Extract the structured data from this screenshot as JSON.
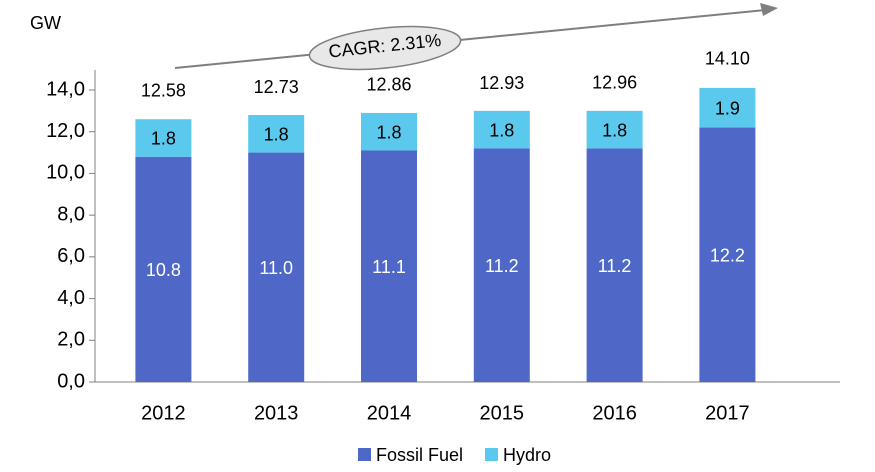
{
  "chart_data": {
    "type": "stacked_bar",
    "y_label": "GW",
    "annotation": "CAGR: 2.31%",
    "categories": [
      "2012",
      "2013",
      "2014",
      "2015",
      "2016",
      "2017"
    ],
    "series": [
      {
        "name": "Fossil Fuel",
        "color": "#4f68c8",
        "values": [
          10.8,
          11.0,
          11.1,
          11.2,
          11.2,
          12.2
        ],
        "value_labels": [
          "10.8",
          "11.0",
          "11.1",
          "11.2",
          "11.2",
          "12.2"
        ]
      },
      {
        "name": "Hydro",
        "color": "#5bc8ee",
        "values": [
          1.8,
          1.8,
          1.8,
          1.8,
          1.8,
          1.9
        ]
      }
    ],
    "totals": {
      "values": [
        12.58,
        12.73,
        12.86,
        12.93,
        12.96,
        14.1
      ],
      "value_labels": [
        "12.58",
        "12.73",
        "12.86",
        "12.93",
        "12.96",
        "14.10"
      ]
    },
    "ylim": [
      0,
      14
    ],
    "yticks": [
      {
        "value": 0,
        "label": "0,0"
      },
      {
        "value": 2,
        "label": "2,0"
      },
      {
        "value": 4,
        "label": "4,0"
      },
      {
        "value": 6,
        "label": "6,0"
      },
      {
        "value": 8,
        "label": "8,0"
      },
      {
        "value": 10,
        "label": "10,0"
      },
      {
        "value": 12,
        "label": "12,0"
      },
      {
        "value": 14,
        "label": "14,0"
      }
    ]
  }
}
